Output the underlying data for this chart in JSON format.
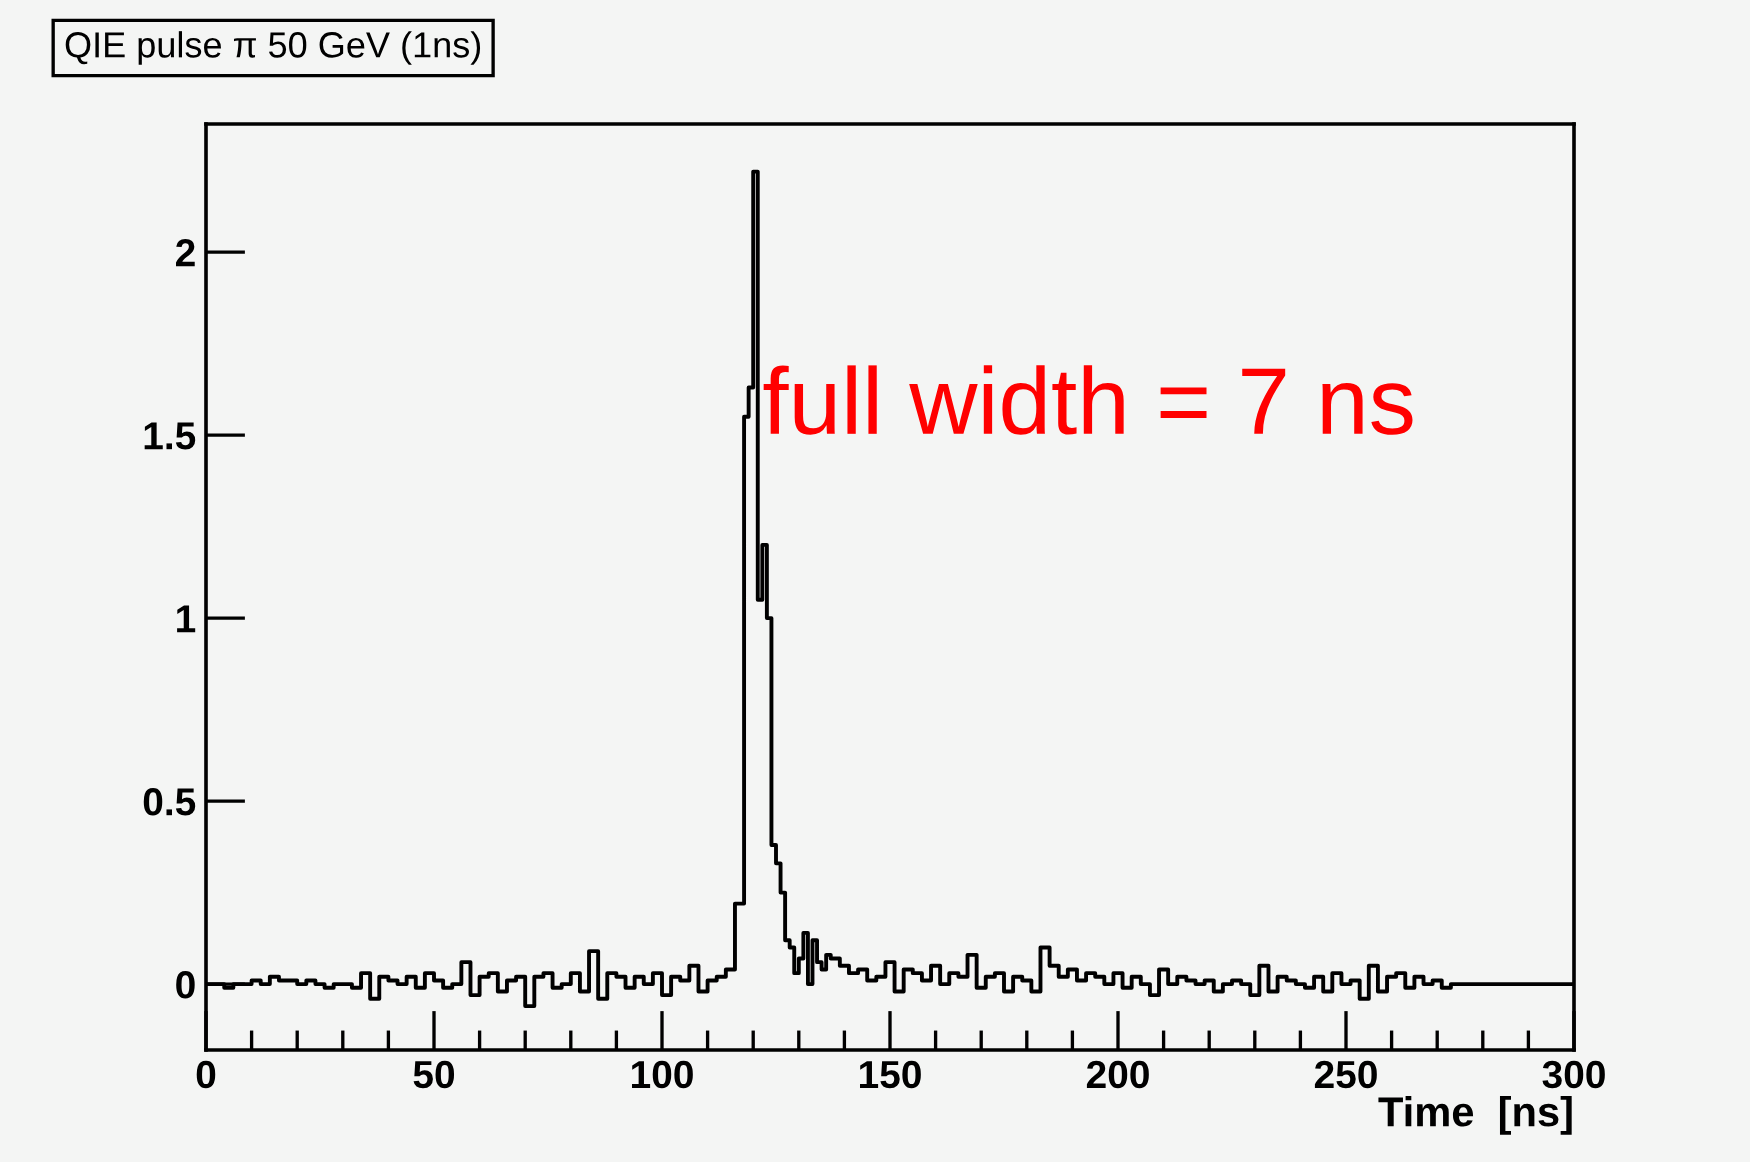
{
  "chart_data": {
    "type": "step",
    "title": "QIE pulse π 50 GeV (1ns)",
    "xlabel": "Time  [ns]",
    "annotations": [
      {
        "text": "full width = 7 ns",
        "x": 122,
        "y": 1.45
      }
    ],
    "x": [
      0,
      2,
      4,
      6,
      8,
      10,
      12,
      14,
      16,
      18,
      20,
      22,
      24,
      26,
      28,
      30,
      32,
      34,
      36,
      38,
      40,
      42,
      44,
      46,
      48,
      50,
      52,
      54,
      56,
      58,
      60,
      62,
      64,
      66,
      68,
      70,
      72,
      74,
      76,
      78,
      80,
      82,
      84,
      86,
      88,
      90,
      92,
      94,
      96,
      98,
      100,
      102,
      104,
      106,
      108,
      110,
      112,
      114,
      116,
      118,
      119,
      120,
      121,
      122,
      123,
      124,
      125,
      126,
      127,
      128,
      129,
      130,
      131,
      132,
      133,
      134,
      135,
      136,
      137,
      139,
      141,
      143,
      145,
      147,
      149,
      151,
      153,
      155,
      157,
      159,
      161,
      163,
      165,
      167,
      169,
      171,
      173,
      175,
      177,
      179,
      181,
      183,
      185,
      187,
      189,
      191,
      193,
      195,
      197,
      199,
      201,
      203,
      205,
      207,
      209,
      211,
      213,
      215,
      217,
      219,
      221,
      223,
      225,
      227,
      229,
      231,
      233,
      235,
      237,
      239,
      241,
      243,
      245,
      247,
      249,
      251,
      253,
      255,
      257,
      259,
      261,
      263,
      265,
      267,
      269,
      271,
      273,
      300
    ],
    "series": [
      {
        "color": "#000000",
        "values": [
          0.0,
          0.0,
          -0.01,
          0.0,
          0.0,
          0.01,
          0.0,
          0.02,
          0.01,
          0.01,
          0.0,
          0.01,
          0.0,
          -0.01,
          0.0,
          0.0,
          -0.01,
          0.03,
          -0.04,
          0.02,
          0.01,
          0.0,
          0.02,
          -0.01,
          0.03,
          0.01,
          -0.01,
          0.0,
          0.06,
          -0.03,
          0.02,
          0.03,
          -0.02,
          0.01,
          0.02,
          -0.06,
          0.02,
          0.03,
          -0.01,
          0.0,
          0.03,
          -0.02,
          0.09,
          -0.04,
          0.03,
          0.02,
          -0.01,
          0.02,
          0.0,
          0.03,
          -0.03,
          0.02,
          0.01,
          0.05,
          -0.02,
          0.01,
          0.02,
          0.04,
          0.22,
          1.55,
          1.63,
          2.22,
          1.05,
          1.2,
          1.0,
          0.38,
          0.33,
          0.25,
          0.12,
          0.1,
          0.03,
          0.07,
          0.14,
          0.0,
          0.12,
          0.06,
          0.04,
          0.08,
          0.07,
          0.05,
          0.03,
          0.04,
          0.01,
          0.02,
          0.06,
          -0.02,
          0.04,
          0.03,
          0.01,
          0.05,
          0.0,
          0.03,
          0.02,
          0.08,
          -0.01,
          0.02,
          0.03,
          -0.02,
          0.02,
          0.01,
          -0.02,
          0.1,
          0.05,
          0.02,
          0.04,
          0.01,
          0.03,
          0.02,
          0.0,
          0.03,
          -0.01,
          0.02,
          0.0,
          -0.03,
          0.04,
          0.0,
          0.02,
          0.01,
          0.0,
          0.01,
          -0.02,
          0.0,
          0.01,
          0.0,
          -0.03,
          0.05,
          -0.02,
          0.02,
          0.01,
          0.0,
          -0.01,
          0.02,
          -0.02,
          0.03,
          0.0,
          0.01,
          -0.04,
          0.05,
          -0.02,
          0.02,
          0.03,
          -0.01,
          0.02,
          0.0,
          0.01,
          -0.01,
          0.0,
          0.0
        ]
      }
    ],
    "xlim": [
      0,
      300
    ],
    "ylim": [
      -0.18,
      2.35
    ],
    "xticks": [
      0,
      {
        "value": 10,
        "label": null
      },
      {
        "value": 20,
        "label": null
      },
      {
        "value": 30,
        "label": null
      },
      {
        "value": 40,
        "label": null
      },
      50,
      {
        "value": 60,
        "label": null
      },
      {
        "value": 70,
        "label": null
      },
      {
        "value": 80,
        "label": null
      },
      {
        "value": 90,
        "label": null
      },
      100,
      {
        "value": 110,
        "label": null
      },
      {
        "value": 120,
        "label": null
      },
      {
        "value": 130,
        "label": null
      },
      {
        "value": 140,
        "label": null
      },
      150,
      {
        "value": 160,
        "label": null
      },
      {
        "value": 170,
        "label": null
      },
      {
        "value": 180,
        "label": null
      },
      {
        "value": 190,
        "label": null
      },
      200,
      {
        "value": 210,
        "label": null
      },
      {
        "value": 220,
        "label": null
      },
      {
        "value": 230,
        "label": null
      },
      {
        "value": 240,
        "label": null
      },
      250,
      {
        "value": 260,
        "label": null
      },
      {
        "value": 270,
        "label": null
      },
      {
        "value": 280,
        "label": null
      },
      {
        "value": 290,
        "label": null
      },
      300
    ],
    "yticks": [
      0,
      0.5,
      1,
      1.5,
      2
    ],
    "grid": false,
    "legend": false
  }
}
